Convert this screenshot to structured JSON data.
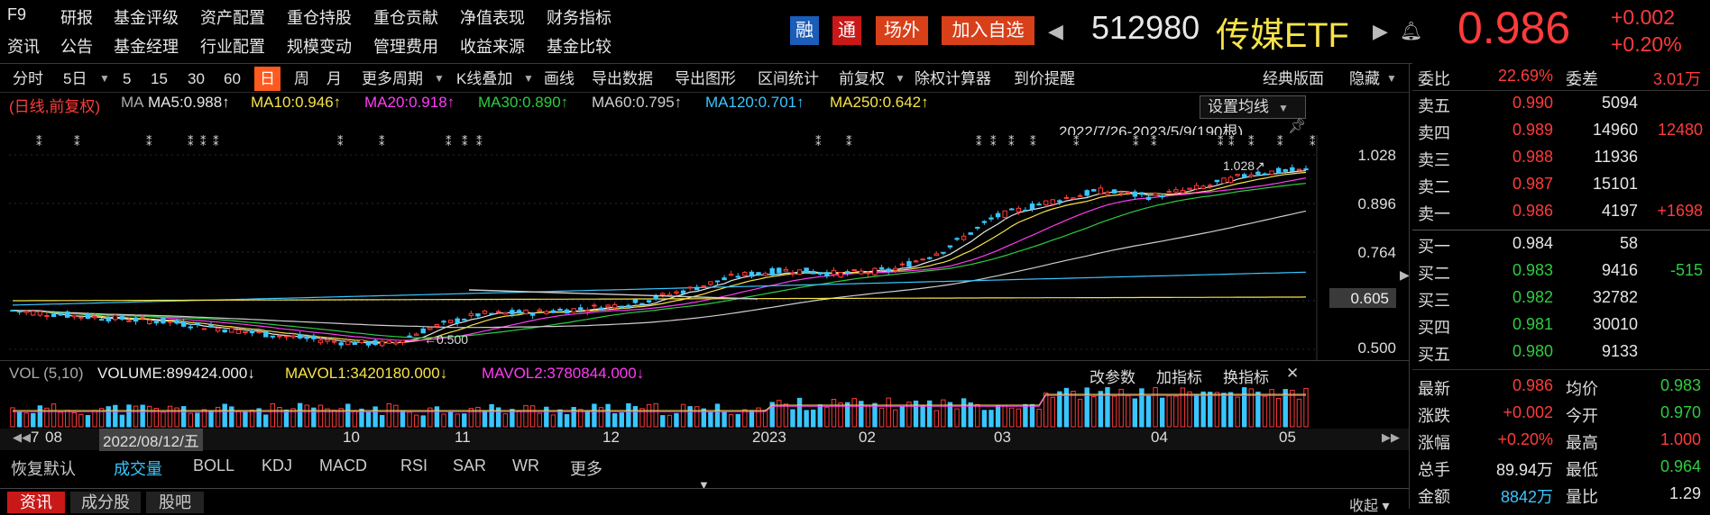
{
  "menu": {
    "row1": [
      "F9",
      "研报",
      "基金评级",
      "资产配置",
      "重仓持股",
      "重仓贡献",
      "净值表现",
      "财务指标"
    ],
    "row2": [
      "资讯",
      "公告",
      "基金经理",
      "行业配置",
      "规模变动",
      "管理费用",
      "收益来源",
      "基金比较"
    ]
  },
  "header": {
    "badge_rong": "融",
    "badge_tong": "通",
    "btn_otc": "场外",
    "btn_add": "加入自选",
    "code": "512980",
    "name": "传媒ETF",
    "price": "0.986",
    "change": "+0.002",
    "change_pct": "+0.20%"
  },
  "toolbar": [
    "分时",
    "5日",
    "5",
    "15",
    "30",
    "60",
    "日",
    "周",
    "月",
    "更多周期",
    "K线叠加",
    "画线",
    "导出数据",
    "导出图形",
    "区间统计",
    "前复权",
    "除权计算器",
    "到价提醒",
    "经典版面",
    "隐藏"
  ],
  "ma_line": {
    "prefix": "(日线,前复权)",
    "ma": "MA",
    "ma5": "MA5:0.988↑",
    "ma10": "MA10:0.946↑",
    "ma20": "MA20:0.918↑",
    "ma30": "MA30:0.890↑",
    "ma60": "MA60:0.795↑",
    "ma120": "MA120:0.701↑",
    "ma250": "MA250:0.642↑",
    "set_ma": "设置均线",
    "range": "2022/7/26-2023/5/9(190根)"
  },
  "price_axis": [
    "1.028",
    "0.896",
    "0.764",
    "0.605",
    "0.500"
  ],
  "chart_labels": {
    "high": "1.028↗",
    "low": "←0.500"
  },
  "volume": {
    "label": "VOL (5,10)",
    "volume": "VOLUME:899424.000↓",
    "mavol1": "MAVOL1:3420180.000↓",
    "mavol2": "MAVOL2:3780844.000↓",
    "btn_params": "改参数",
    "btn_add": "加指标",
    "btn_swap": "换指标"
  },
  "date_axis": [
    "7",
    "08",
    "2022/08/12/五",
    "10",
    "11",
    "12",
    "2023",
    "02",
    "03",
    "04",
    "05"
  ],
  "indicator_tabs": [
    "恢复默认",
    "成交量",
    "BOLL",
    "KDJ",
    "MACD",
    "RSI",
    "SAR",
    "WR",
    "更多"
  ],
  "bottom_tabs": [
    "资讯",
    "成分股",
    "股吧"
  ],
  "bottom_right": "收起",
  "order_book": {
    "weibi_label": "委比",
    "weibi": "22.69%",
    "weicha_label": "委差",
    "weicha": "3.01万",
    "sells": [
      {
        "label": "卖五",
        "price": "0.990",
        "vol": "5094",
        "delta": ""
      },
      {
        "label": "卖四",
        "price": "0.989",
        "vol": "14960",
        "delta": "12480"
      },
      {
        "label": "卖三",
        "price": "0.988",
        "vol": "11936",
        "delta": ""
      },
      {
        "label": "卖二",
        "price": "0.987",
        "vol": "15101",
        "delta": ""
      },
      {
        "label": "卖一",
        "price": "0.986",
        "vol": "4197",
        "delta": "+1698"
      }
    ],
    "buys": [
      {
        "label": "买一",
        "price": "0.984",
        "vol": "58",
        "delta": ""
      },
      {
        "label": "买二",
        "price": "0.983",
        "vol": "9416",
        "delta": "-515"
      },
      {
        "label": "买三",
        "price": "0.982",
        "vol": "32782",
        "delta": ""
      },
      {
        "label": "买四",
        "price": "0.981",
        "vol": "30010",
        "delta": ""
      },
      {
        "label": "买五",
        "price": "0.980",
        "vol": "9133",
        "delta": ""
      }
    ]
  },
  "stats": [
    {
      "l1": "最新",
      "v1": "0.986",
      "l2": "均价",
      "v2": "0.983"
    },
    {
      "l1": "涨跌",
      "v1": "+0.002",
      "l2": "今开",
      "v2": "0.970"
    },
    {
      "l1": "涨幅",
      "v1": "+0.20%",
      "l2": "最高",
      "v2": "1.000"
    },
    {
      "l1": "总手",
      "v1": "89.94万",
      "l2": "最低",
      "v2": "0.964"
    },
    {
      "l1": "金额",
      "v1": "8842万",
      "l2": "量比",
      "v2": "1.29"
    }
  ],
  "colors": {
    "up": "#ff3b3b",
    "down": "#2ecc40",
    "accent": "#ff5a1f",
    "cyan": "#39c6ff"
  }
}
